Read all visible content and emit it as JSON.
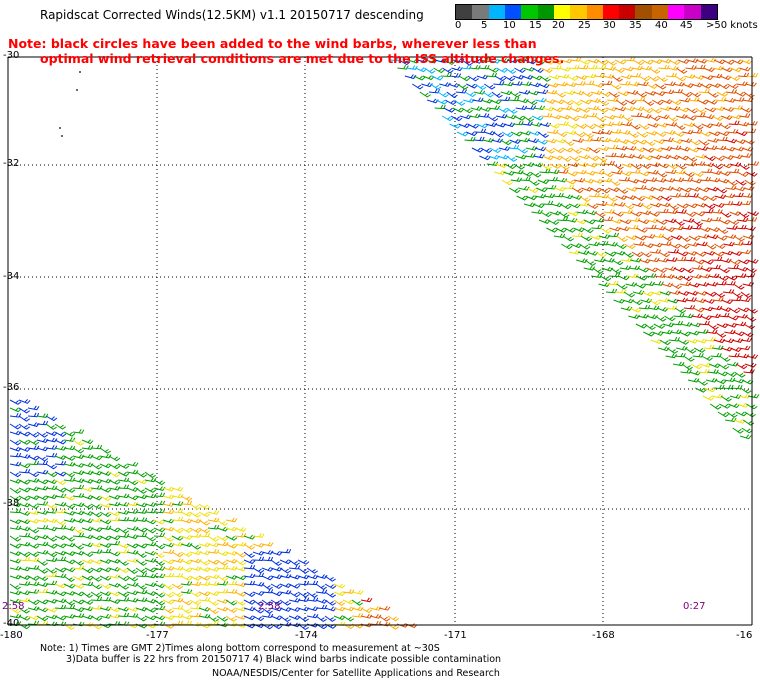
{
  "title": "Rapidscat Corrected Winds(12.5KM) v1.1 20150717 descending",
  "note_line1": "Note: black circles have been added to the wind barbs, wherever less than",
  "note_line2": "optimal wind retrieval conditions are met due to the ISS altitude changes.",
  "scale": {
    "labels": [
      "0",
      "5",
      "10",
      "15",
      "20",
      "25",
      "30",
      "35",
      "40",
      "45",
      ">50 knots"
    ],
    "colors": [
      "#404040",
      "#7a7a7a",
      "#00b4ff",
      "#0050ff",
      "#00c800",
      "#009600",
      "#ffff00",
      "#ffc800",
      "#ff8c00",
      "#ff0000",
      "#c80000",
      "#a05000",
      "#c86400",
      "#ff00ff",
      "#c800c8",
      "#3c0080"
    ]
  },
  "lat_labels": [
    "-30",
    "-32",
    "-34",
    "-36",
    "-38",
    "-40"
  ],
  "lon_labels": [
    "-180",
    "-177",
    "-174",
    "-171",
    "-168",
    "-16"
  ],
  "time_labels": [
    "2:58",
    "2:58",
    "0:27"
  ],
  "footer_line1": "Note: 1) Times are GMT 2)Times along bottom correspond to measurement at ~30S",
  "footer_line2": "3)Data buffer is 22 hrs from 20150717 4) Black wind barbs indicate possible contamination",
  "footer_line3": "NOAA/NESDIS/Center for Satellite Applications and Research",
  "swaths": [
    {
      "name": "upper-right swath",
      "speed_range_knots": [
        10,
        40
      ]
    },
    {
      "name": "lower-left swath",
      "speed_range_knots": [
        10,
        35
      ]
    }
  ]
}
